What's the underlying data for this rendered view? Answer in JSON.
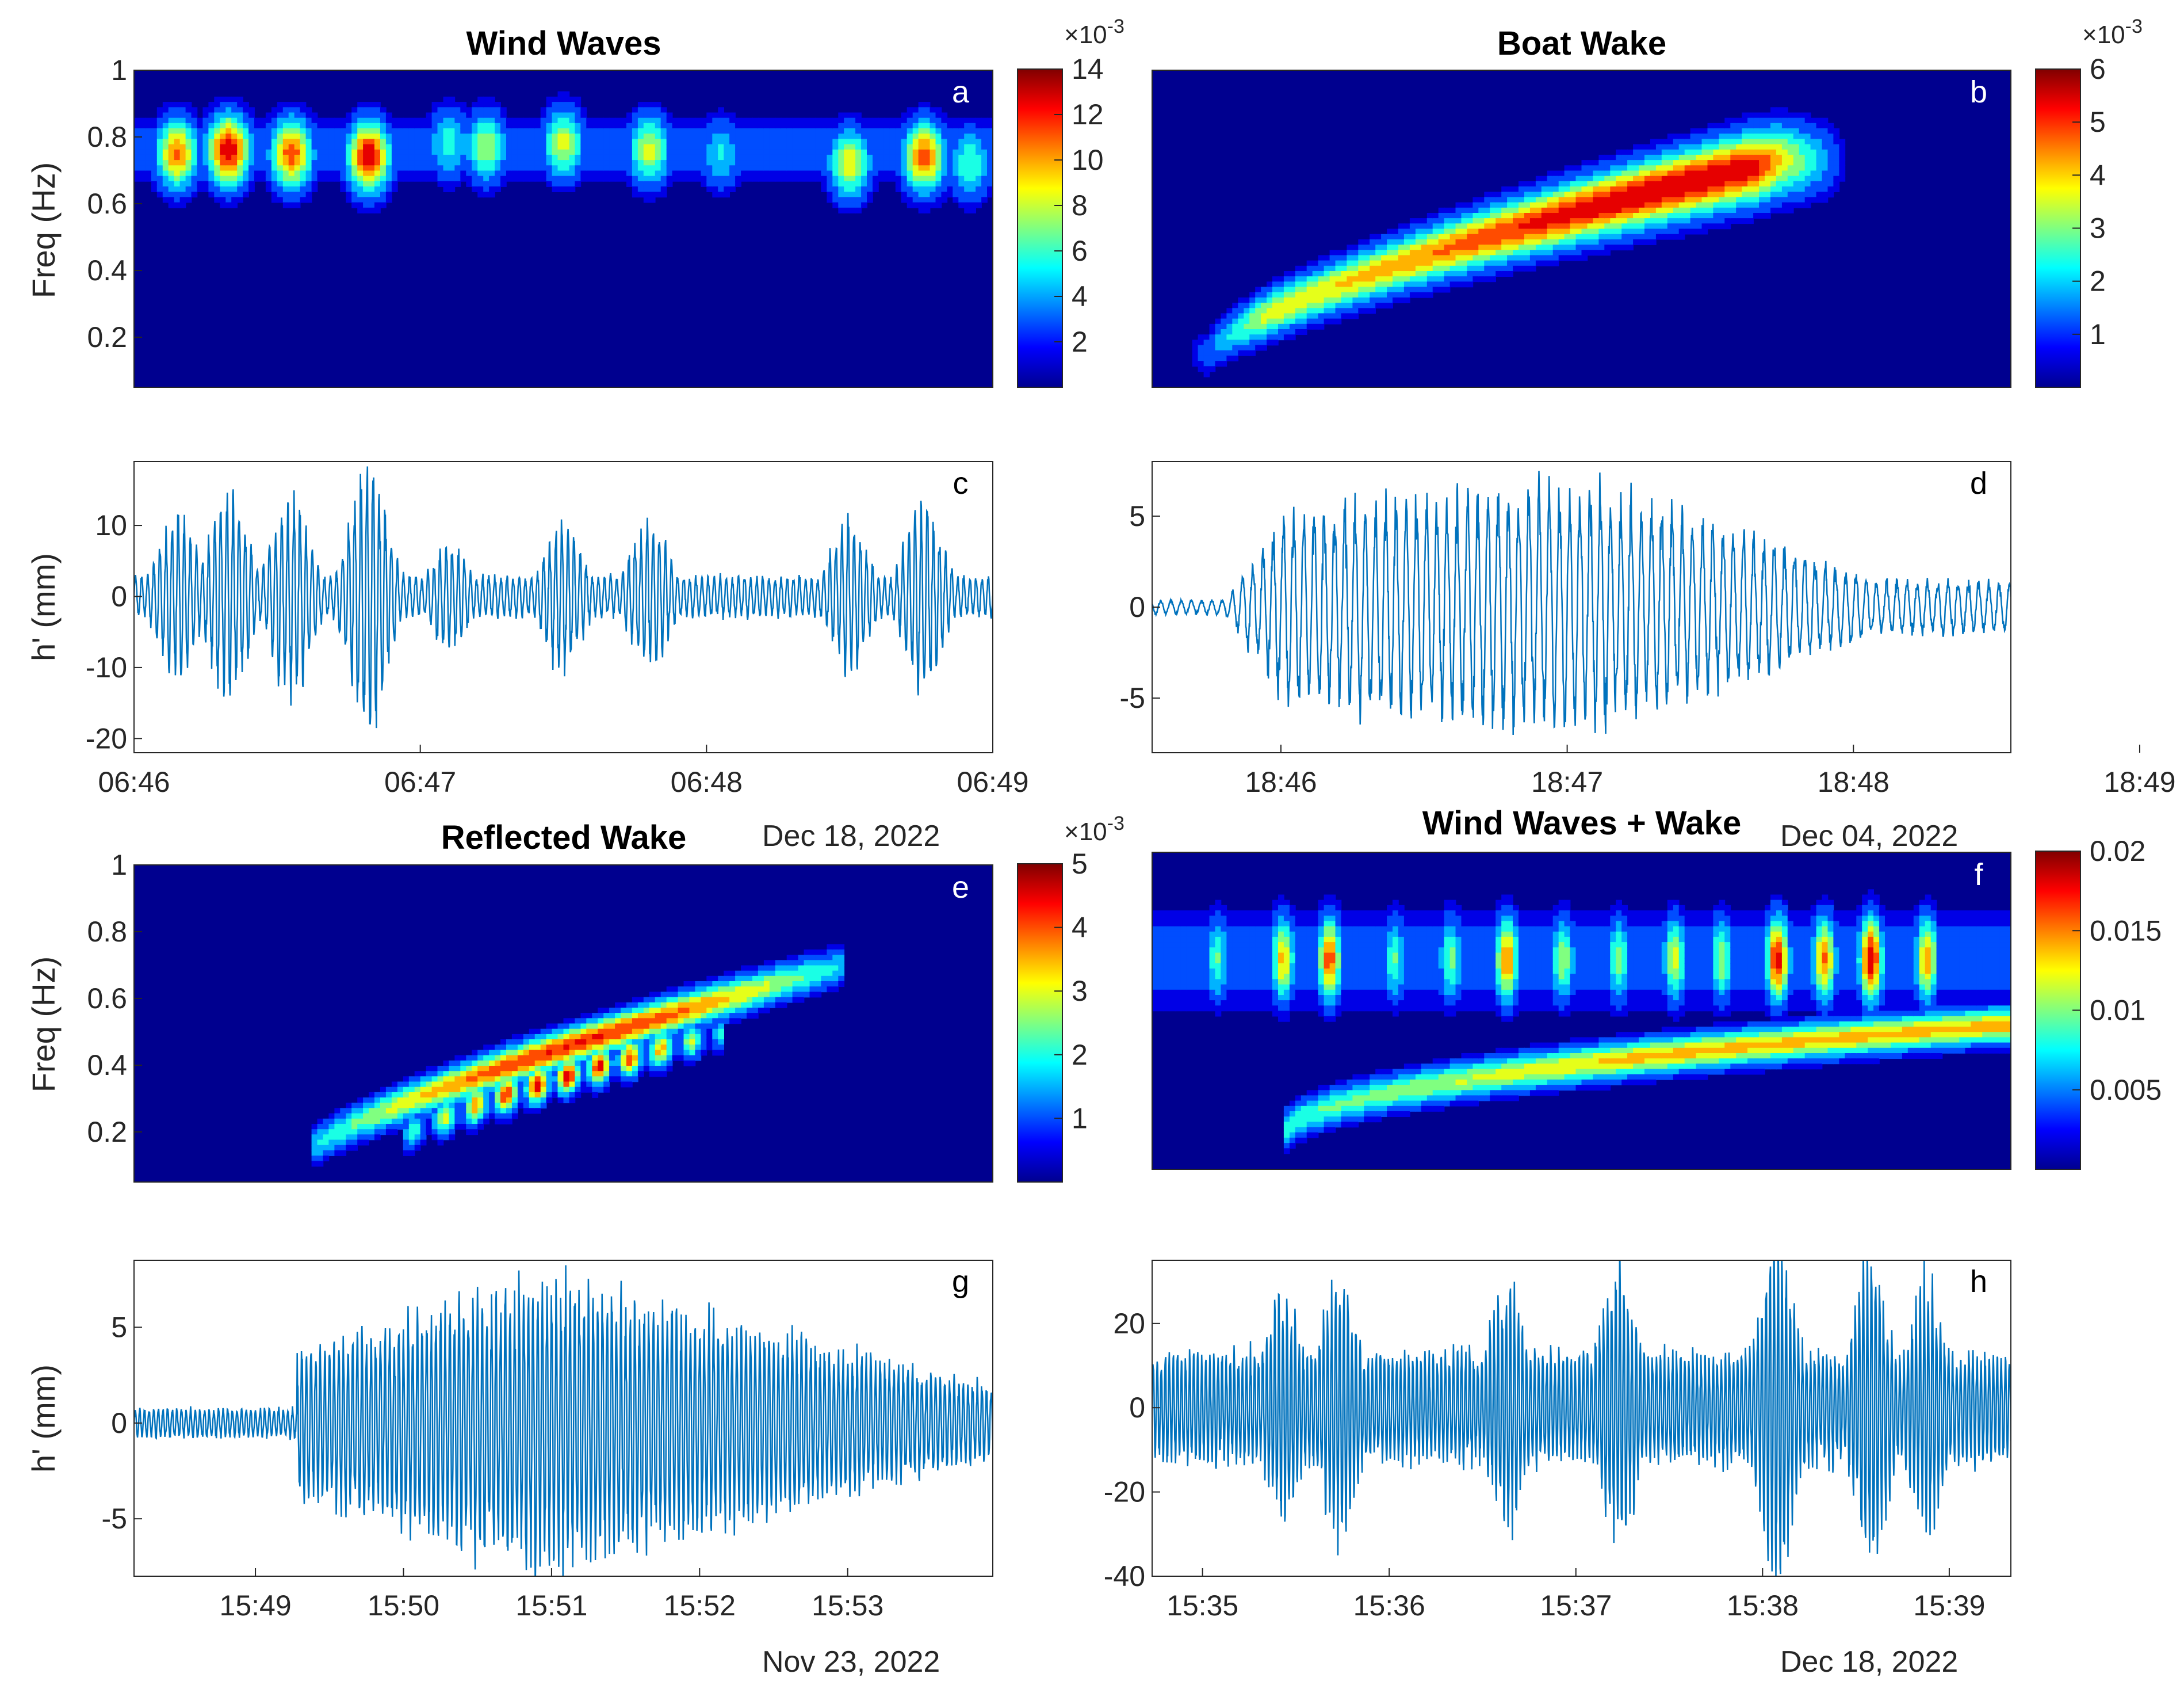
{
  "figure": {
    "colors": {
      "trace": "#0072bd",
      "spec_background": "#00008f",
      "axis": "#262626"
    }
  },
  "chart_data": [
    {
      "id": "a",
      "type": "heatmap",
      "title": "Wind Waves",
      "panel_letter": "a",
      "ylabel": "Freq (Hz)",
      "ylim": [
        0.05,
        1.0
      ],
      "yticks": [
        "0.2",
        "0.4",
        "0.6",
        "0.8",
        "1"
      ],
      "time_range_min": [
        0,
        3
      ],
      "colorbar": {
        "ticks": [
          "2",
          "4",
          "6",
          "8",
          "10",
          "12",
          "14"
        ],
        "range": [
          0,
          14
        ],
        "exponent_base": "×10",
        "exponent_power": "-3"
      },
      "blobs": [
        {
          "t": 0.15,
          "f": 0.75,
          "amp": 0.8
        },
        {
          "t": 0.33,
          "f": 0.76,
          "amp": 1.0
        },
        {
          "t": 0.55,
          "f": 0.75,
          "amp": 0.85
        },
        {
          "t": 0.82,
          "f": 0.74,
          "amp": 1.0
        },
        {
          "t": 1.1,
          "f": 0.78,
          "amp": 0.4
        },
        {
          "t": 1.23,
          "f": 0.77,
          "amp": 0.55
        },
        {
          "t": 1.5,
          "f": 0.78,
          "amp": 0.6
        },
        {
          "t": 1.8,
          "f": 0.76,
          "amp": 0.6
        },
        {
          "t": 2.05,
          "f": 0.75,
          "amp": 0.35
        },
        {
          "t": 2.5,
          "f": 0.72,
          "amp": 0.65
        },
        {
          "t": 2.76,
          "f": 0.74,
          "amp": 0.85
        },
        {
          "t": 2.92,
          "f": 0.72,
          "amp": 0.45
        }
      ]
    },
    {
      "id": "b",
      "type": "heatmap",
      "title": "Boat Wake",
      "panel_letter": "b",
      "ylabel": "",
      "ylim": [
        0.05,
        1.0
      ],
      "time_range_min": [
        -0.6,
        2.4
      ],
      "colorbar": {
        "ticks": [
          "1",
          "2",
          "3",
          "4",
          "5",
          "6"
        ],
        "range": [
          0,
          6
        ],
        "exponent_base": "×10",
        "exponent_power": "-3"
      },
      "ridge": {
        "t_start": -0.4,
        "t_end": 1.6,
        "f_start": 0.15,
        "f_end": 0.73,
        "peak_t": 1.2,
        "amp": 1.0,
        "width": 0.06
      }
    },
    {
      "id": "c",
      "type": "line",
      "panel_letter": "c",
      "ylabel": "h' (mm)",
      "ylim": [
        -22,
        19
      ],
      "yticks": [
        "-20",
        "-10",
        "0",
        "10"
      ],
      "ytick_values": [
        -20,
        -10,
        0,
        10
      ],
      "xticks": [
        "06:46",
        "06:47",
        "06:48",
        "06:49"
      ],
      "x_range_min": [
        0,
        3
      ],
      "x_tick_values": [
        0,
        1,
        2,
        3
      ],
      "date_label": "Dec 18, 2022",
      "envelope_peaks": [
        {
          "t": 0.15,
          "amp": 12
        },
        {
          "t": 0.33,
          "amp": 16
        },
        {
          "t": 0.55,
          "amp": 15
        },
        {
          "t": 0.82,
          "amp": 20
        },
        {
          "t": 1.1,
          "amp": 8
        },
        {
          "t": 1.5,
          "amp": 11
        },
        {
          "t": 1.8,
          "amp": 11
        },
        {
          "t": 2.5,
          "amp": 11
        },
        {
          "t": 2.76,
          "amp": 14
        }
      ]
    },
    {
      "id": "d",
      "type": "line",
      "panel_letter": "d",
      "ylabel": "",
      "ylim": [
        -8,
        8
      ],
      "yticks": [
        "-5",
        "0",
        "5"
      ],
      "ytick_values": [
        -5,
        0,
        5
      ],
      "xticks": [
        "18:46",
        "18:47",
        "18:48",
        "18:49"
      ],
      "x_range_min": [
        -0.45,
        2.55
      ],
      "x_tick_values": [
        0,
        1,
        2,
        3
      ],
      "date_label": "Dec 04, 2022",
      "packet": {
        "onset_t": -0.2,
        "peak_t": 1.1,
        "decay_end_t": 2.1,
        "peak_amp": 7,
        "tail_amp": 1.5
      }
    },
    {
      "id": "e",
      "type": "heatmap",
      "title": "Reflected Wake",
      "panel_letter": "e",
      "ylabel": "Freq (Hz)",
      "ylim": [
        0.05,
        1.0
      ],
      "yticks": [
        "0.2",
        "0.4",
        "0.6",
        "0.8",
        "1"
      ],
      "time_range_min": [
        0,
        5.8
      ],
      "colorbar": {
        "ticks": [
          "1",
          "2",
          "3",
          "4",
          "5"
        ],
        "range": [
          0,
          5
        ],
        "exponent_base": "×10",
        "exponent_power": "-3"
      },
      "ridges": [
        {
          "t_start": 1.2,
          "t_end": 4.8,
          "f_start": 0.15,
          "f_end": 0.7,
          "amp": 0.9
        },
        {
          "t_start": 1.8,
          "t_end": 4.0,
          "f_start": 0.18,
          "f_end": 0.5,
          "amp": 1.0
        }
      ]
    },
    {
      "id": "f",
      "type": "heatmap",
      "title": "Wind Waves + Wake",
      "panel_letter": "f",
      "ylabel": "",
      "ylim": [
        0.05,
        1.0
      ],
      "time_range_min": [
        0,
        4.6
      ],
      "colorbar": {
        "ticks": [
          "0.005",
          "0.01",
          "0.015",
          "0.02"
        ],
        "range": [
          0,
          0.02
        ]
      },
      "ridge": {
        "t_start": 0.7,
        "t_end": 4.5,
        "f_start": 0.15,
        "f_end": 0.48,
        "amp": 0.7
      },
      "blob_times": [
        0.35,
        0.7,
        0.95,
        1.3,
        1.6,
        1.9,
        2.2,
        2.5,
        2.8,
        3.05,
        3.35,
        3.6,
        3.85,
        4.15
      ],
      "blob_amps": [
        0.45,
        0.7,
        0.85,
        0.45,
        0.5,
        0.8,
        0.55,
        0.5,
        0.6,
        0.55,
        0.95,
        0.8,
        1.0,
        0.75
      ]
    },
    {
      "id": "g",
      "type": "line",
      "panel_letter": "g",
      "ylabel": "h' (mm)",
      "ylim": [
        -8,
        8.5
      ],
      "yticks": [
        "-5",
        "0",
        "5"
      ],
      "ytick_values": [
        -5,
        0,
        5
      ],
      "xticks": [
        "15:49",
        "15:50",
        "15:51",
        "15:52",
        "15:53"
      ],
      "x_range_min": [
        0,
        5.8
      ],
      "x_tick_values": [
        0.82,
        1.82,
        2.82,
        3.82,
        4.82
      ],
      "date_label": "Nov 23, 2022",
      "packet": {
        "onset_t": 1.1,
        "peak_t": 2.8,
        "decay_end_t": 5.8,
        "peak_amp": 8,
        "tail_amp": 2
      }
    },
    {
      "id": "h",
      "type": "line",
      "panel_letter": "h",
      "ylabel": "",
      "ylim": [
        -40,
        35
      ],
      "yticks": [
        "-40",
        "-20",
        "0",
        "20"
      ],
      "ytick_values": [
        -40,
        -20,
        0,
        20
      ],
      "xticks": [
        "15:35",
        "15:36",
        "15:37",
        "15:38",
        "15:39"
      ],
      "x_range_min": [
        0,
        4.6
      ],
      "x_tick_values": [
        0.27,
        1.27,
        2.27,
        3.27,
        4.27
      ],
      "date_label": "Dec 18, 2022",
      "envelope_peaks": [
        {
          "t": 0.7,
          "amp": 22
        },
        {
          "t": 1.0,
          "amp": 28
        },
        {
          "t": 1.9,
          "amp": 25
        },
        {
          "t": 2.5,
          "amp": 30
        },
        {
          "t": 3.35,
          "amp": 38
        },
        {
          "t": 3.85,
          "amp": 32
        },
        {
          "t": 4.15,
          "amp": 26
        }
      ]
    }
  ]
}
